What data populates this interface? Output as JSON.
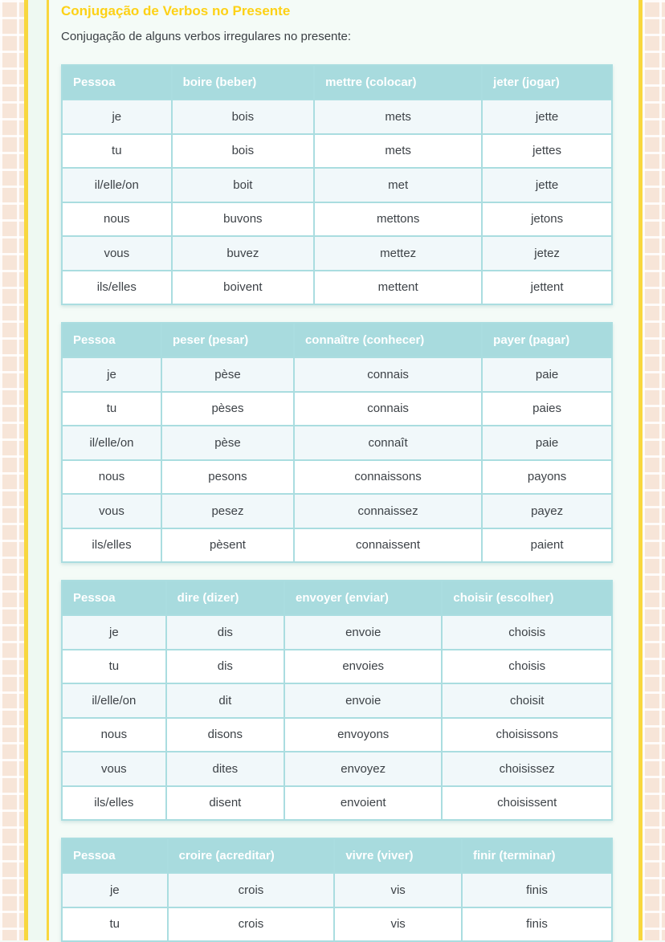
{
  "page": {
    "title": "Conjugação de Verbos no Presente",
    "subtitle": "Conjugação de alguns verbos irregulares no presente:"
  },
  "colors": {
    "title_yellow": "#fdd116",
    "rule_yellow": "#f8d73e",
    "table_header_teal": "#a8dbde",
    "table_border_teal": "#aadde0",
    "row_alternate": "#f1f8fa",
    "content_background": "#f4fbf7",
    "edge_pattern_peach": "#f7e5d8",
    "body_text": "#3d4247"
  },
  "tables": [
    {
      "headers": [
        "Pessoa",
        "boire (beber)",
        "mettre (colocar)",
        "jeter (jogar)"
      ],
      "rows": [
        [
          "je",
          "bois",
          "mets",
          "jette"
        ],
        [
          "tu",
          "bois",
          "mets",
          "jettes"
        ],
        [
          "il/elle/on",
          "boit",
          "met",
          "jette"
        ],
        [
          "nous",
          "buvons",
          "mettons",
          "jetons"
        ],
        [
          "vous",
          "buvez",
          "mettez",
          "jetez"
        ],
        [
          "ils/elles",
          "boivent",
          "mettent",
          "jettent"
        ]
      ]
    },
    {
      "headers": [
        "Pessoa",
        "peser (pesar)",
        "connaître (conhecer)",
        "payer (pagar)"
      ],
      "rows": [
        [
          "je",
          "pèse",
          "connais",
          "paie"
        ],
        [
          "tu",
          "pèses",
          "connais",
          "paies"
        ],
        [
          "il/elle/on",
          "pèse",
          "connaît",
          "paie"
        ],
        [
          "nous",
          "pesons",
          "connaissons",
          "payons"
        ],
        [
          "vous",
          "pesez",
          "connaissez",
          "payez"
        ],
        [
          "ils/elles",
          "pèsent",
          "connaissent",
          "paient"
        ]
      ]
    },
    {
      "headers": [
        "Pessoa",
        "dire (dizer)",
        "envoyer (enviar)",
        "choisir (escolher)"
      ],
      "rows": [
        [
          "je",
          "dis",
          "envoie",
          "choisis"
        ],
        [
          "tu",
          "dis",
          "envoies",
          "choisis"
        ],
        [
          "il/elle/on",
          "dit",
          "envoie",
          "choisit"
        ],
        [
          "nous",
          "disons",
          "envoyons",
          "choisissons"
        ],
        [
          "vous",
          "dites",
          "envoyez",
          "choisissez"
        ],
        [
          "ils/elles",
          "disent",
          "envoient",
          "choisissent"
        ]
      ]
    },
    {
      "headers": [
        "Pessoa",
        "croire (acreditar)",
        "vivre (viver)",
        "finir (terminar)"
      ],
      "rows": [
        [
          "je",
          "crois",
          "vis",
          "finis"
        ],
        [
          "tu",
          "crois",
          "vis",
          "finis"
        ]
      ]
    }
  ]
}
